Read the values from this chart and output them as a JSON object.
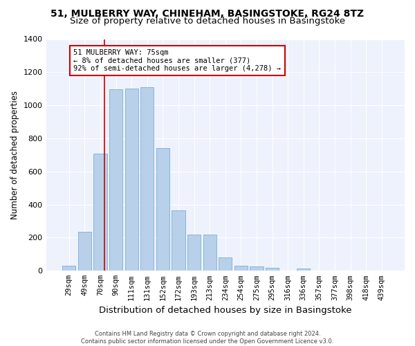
{
  "title1": "51, MULBERRY WAY, CHINEHAM, BASINGSTOKE, RG24 8TZ",
  "title2": "Size of property relative to detached houses in Basingstoke",
  "xlabel": "Distribution of detached houses by size in Basingstoke",
  "ylabel": "Number of detached properties",
  "categories": [
    "29sqm",
    "49sqm",
    "70sqm",
    "90sqm",
    "111sqm",
    "131sqm",
    "152sqm",
    "172sqm",
    "193sqm",
    "213sqm",
    "234sqm",
    "254sqm",
    "275sqm",
    "295sqm",
    "316sqm",
    "336sqm",
    "357sqm",
    "377sqm",
    "398sqm",
    "418sqm",
    "439sqm"
  ],
  "values": [
    32,
    235,
    710,
    1095,
    1100,
    1110,
    740,
    365,
    220,
    220,
    80,
    30,
    25,
    18,
    0,
    12,
    0,
    0,
    0,
    0,
    0
  ],
  "bar_color": "#b8d0ea",
  "bar_edge_color": "#7aafd4",
  "annotation_text": "51 MULBERRY WAY: 75sqm\n← 8% of detached houses are smaller (377)\n92% of semi-detached houses are larger (4,278) →",
  "annotation_box_color": "#ffffff",
  "annotation_box_edge": "#cc0000",
  "vline_color": "#cc0000",
  "vline_x": 2.25,
  "ylim": [
    0,
    1400
  ],
  "yticks": [
    0,
    200,
    400,
    600,
    800,
    1000,
    1200,
    1400
  ],
  "background_color": "#eef2fc",
  "footer_text": "Contains HM Land Registry data © Crown copyright and database right 2024.\nContains public sector information licensed under the Open Government Licence v3.0.",
  "title1_fontsize": 10,
  "title2_fontsize": 9.5,
  "tick_fontsize": 7.5,
  "ylabel_fontsize": 8.5,
  "xlabel_fontsize": 9.5,
  "annotation_fontsize": 7.5,
  "footer_fontsize": 6.0
}
